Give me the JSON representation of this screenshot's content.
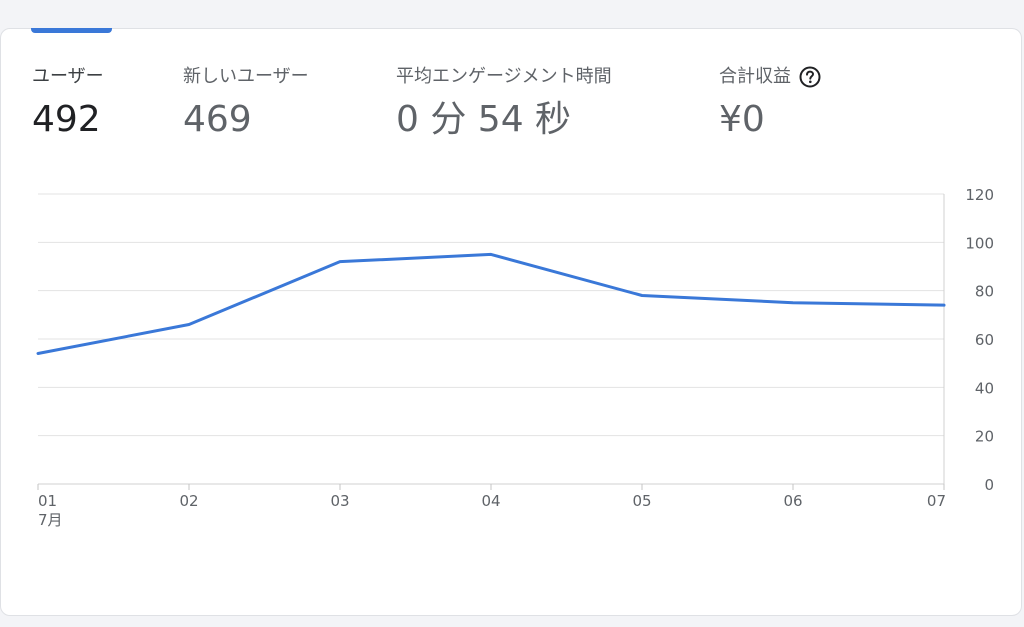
{
  "metrics": [
    {
      "label": "ユーザー",
      "value": "492"
    },
    {
      "label": "新しいユーザー",
      "value": "469"
    },
    {
      "label": "平均エンゲージメント時間",
      "value": "0 分 54 秒"
    },
    {
      "label": "合計収益",
      "value": "¥0"
    }
  ],
  "colors": {
    "line": "#3a78d8",
    "grid": "#e3e3e3",
    "tab_indicator": "#3a78d8"
  },
  "icons": {
    "help": "question-circle-icon"
  },
  "chart_data": {
    "type": "line",
    "categories": [
      "01",
      "02",
      "03",
      "04",
      "05",
      "06",
      "07"
    ],
    "x_month_label": "7月",
    "series": [
      {
        "values": [
          54,
          66,
          92,
          95,
          78,
          75,
          74
        ]
      }
    ],
    "y_ticks": [
      0,
      20,
      40,
      60,
      80,
      100,
      120
    ],
    "ylim": [
      0,
      120
    ],
    "y_axis_position": "right",
    "grid": true,
    "legend": "none"
  }
}
